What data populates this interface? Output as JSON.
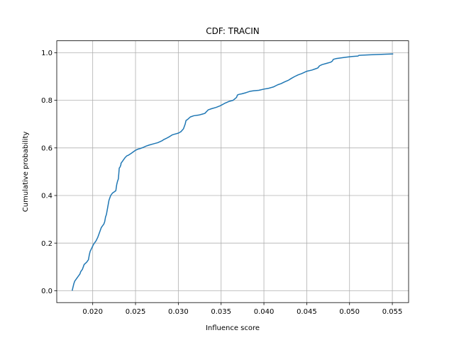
{
  "chart_data": {
    "type": "line",
    "title": "CDF: TRACIN",
    "xlabel": "Influence score",
    "ylabel": "Cumulative probability",
    "xlim": [
      0.0158,
      0.0569
    ],
    "ylim": [
      -0.05,
      1.05
    ],
    "grid": true,
    "legend": "none",
    "x_ticks": [
      0.02,
      0.025,
      0.03,
      0.035,
      0.04,
      0.045,
      0.05,
      0.055
    ],
    "x_tick_labels": [
      "0.020",
      "0.025",
      "0.030",
      "0.035",
      "0.040",
      "0.045",
      "0.050",
      "0.055"
    ],
    "y_ticks": [
      0.0,
      0.2,
      0.4,
      0.6,
      0.8,
      1.0
    ],
    "y_tick_labels": [
      "0.0",
      "0.2",
      "0.4",
      "0.6",
      "0.8",
      "1.0"
    ],
    "series": [
      {
        "color": "#1f77b4",
        "x": [
          0.0176,
          0.0177,
          0.0178,
          0.0179,
          0.0181,
          0.0183,
          0.0185,
          0.0186,
          0.0188,
          0.019,
          0.0193,
          0.0195,
          0.0196,
          0.0197,
          0.0199,
          0.0201,
          0.0204,
          0.0206,
          0.0208,
          0.021,
          0.0213,
          0.0214,
          0.0215,
          0.0216,
          0.0218,
          0.0219,
          0.0221,
          0.0223,
          0.0225,
          0.0227,
          0.0228,
          0.0229,
          0.023,
          0.0231,
          0.0232,
          0.0233,
          0.0233,
          0.0234,
          0.0236,
          0.0238,
          0.024,
          0.0242,
          0.0245,
          0.0248,
          0.025,
          0.0253,
          0.0256,
          0.0259,
          0.0262,
          0.0266,
          0.0271,
          0.0276,
          0.0281,
          0.0283,
          0.0286,
          0.029,
          0.0293,
          0.0296,
          0.03,
          0.0303,
          0.0306,
          0.0308,
          0.0309,
          0.0311,
          0.0314,
          0.0318,
          0.0324,
          0.0328,
          0.0331,
          0.0335,
          0.0339,
          0.0344,
          0.0349,
          0.0354,
          0.0359,
          0.0364,
          0.0368,
          0.0369,
          0.0371,
          0.0374,
          0.0379,
          0.0384,
          0.0388,
          0.0394,
          0.04,
          0.0405,
          0.0411,
          0.0416,
          0.042,
          0.0424,
          0.0429,
          0.0432,
          0.0436,
          0.044,
          0.0444,
          0.0447,
          0.045,
          0.0456,
          0.046,
          0.0463,
          0.0465,
          0.0468,
          0.0473,
          0.0478,
          0.048,
          0.0481,
          0.0484,
          0.049,
          0.0496,
          0.0503,
          0.051,
          0.0511,
          0.0524,
          0.0537,
          0.0551
        ],
        "y": [
          0.0,
          0.015,
          0.03,
          0.04,
          0.05,
          0.06,
          0.07,
          0.08,
          0.09,
          0.11,
          0.12,
          0.13,
          0.15,
          0.165,
          0.18,
          0.195,
          0.21,
          0.225,
          0.245,
          0.265,
          0.28,
          0.29,
          0.31,
          0.32,
          0.36,
          0.38,
          0.4,
          0.41,
          0.415,
          0.42,
          0.445,
          0.46,
          0.47,
          0.515,
          0.52,
          0.53,
          0.535,
          0.54,
          0.55,
          0.56,
          0.567,
          0.57,
          0.577,
          0.585,
          0.59,
          0.595,
          0.598,
          0.602,
          0.607,
          0.612,
          0.617,
          0.622,
          0.63,
          0.635,
          0.64,
          0.648,
          0.655,
          0.658,
          0.662,
          0.668,
          0.68,
          0.7,
          0.715,
          0.72,
          0.73,
          0.735,
          0.738,
          0.742,
          0.745,
          0.76,
          0.765,
          0.77,
          0.777,
          0.787,
          0.795,
          0.8,
          0.812,
          0.822,
          0.825,
          0.827,
          0.832,
          0.838,
          0.84,
          0.842,
          0.847,
          0.85,
          0.856,
          0.865,
          0.87,
          0.877,
          0.885,
          0.892,
          0.9,
          0.907,
          0.912,
          0.917,
          0.922,
          0.927,
          0.932,
          0.936,
          0.945,
          0.95,
          0.955,
          0.96,
          0.965,
          0.972,
          0.975,
          0.978,
          0.981,
          0.984,
          0.986,
          0.989,
          0.991,
          0.993,
          0.995
        ]
      }
    ]
  }
}
